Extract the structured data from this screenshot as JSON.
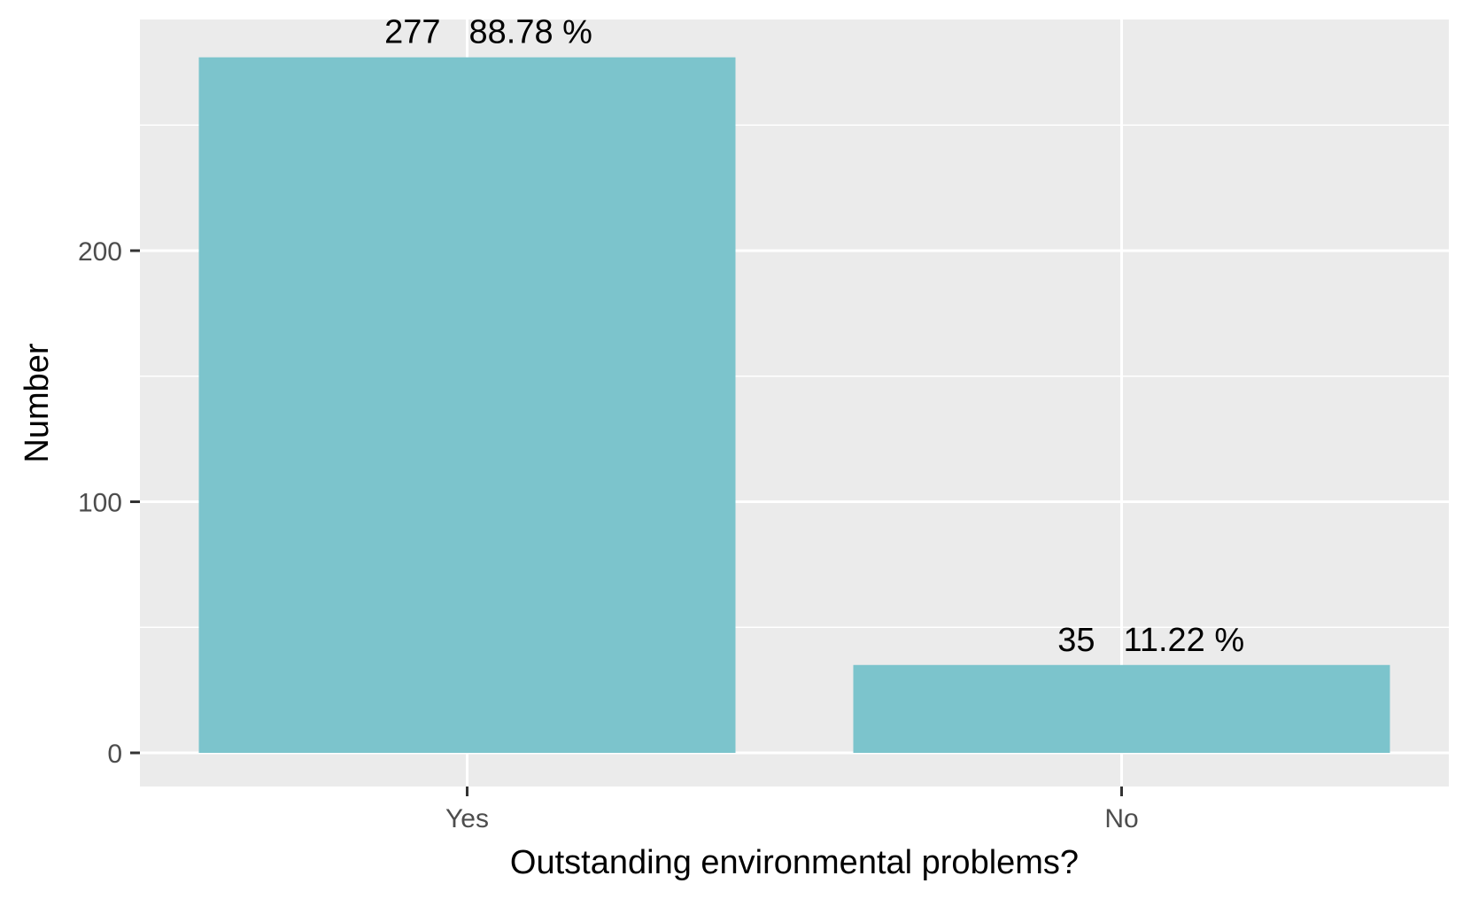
{
  "chart_data": {
    "type": "bar",
    "title": "",
    "xlabel": "Outstanding environmental problems?",
    "ylabel": "Number",
    "categories": [
      "Yes",
      "No"
    ],
    "values": [
      277,
      35
    ],
    "data_labels": [
      {
        "count": "277",
        "percent": "88.78 %"
      },
      {
        "count": "35",
        "percent": "11.22 %"
      }
    ],
    "ylim": [
      0,
      290
    ],
    "yticks": [
      0,
      100,
      200
    ],
    "yticks_labels": [
      "0",
      "100",
      "200"
    ],
    "grid": true,
    "legend": "none",
    "colors": {
      "bar": "#7cc4cc",
      "panel": "#ebebeb",
      "grid": "#ffffff",
      "tick": "#333333"
    }
  }
}
